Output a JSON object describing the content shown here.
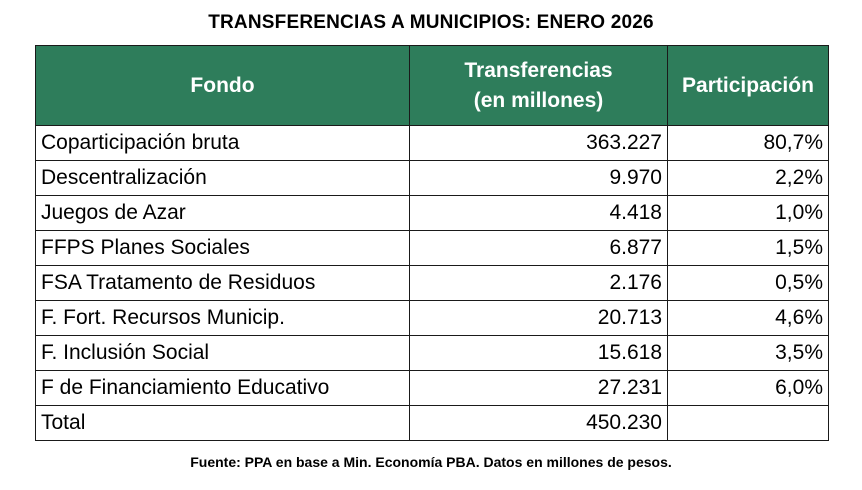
{
  "title": "TRANSFERENCIAS A MUNICIPIOS: ENERO 2026",
  "headers": {
    "fondo": "Fondo",
    "transferencias_line1": "Transferencias",
    "transferencias_line2": "(en millones)",
    "participacion": "Participación"
  },
  "rows": [
    {
      "fondo": "Coparticipación bruta",
      "transferencias": "363.227",
      "participacion": "80,7%"
    },
    {
      "fondo": "Descentralización",
      "transferencias": "9.970",
      "participacion": "2,2%"
    },
    {
      "fondo": "Juegos de Azar",
      "transferencias": "4.418",
      "participacion": "1,0%"
    },
    {
      "fondo": "FFPS Planes Sociales",
      "transferencias": "6.877",
      "participacion": "1,5%"
    },
    {
      "fondo": "FSA Tratamento de Residuos",
      "transferencias": "2.176",
      "participacion": "0,5%"
    },
    {
      "fondo": "F. Fort. Recursos Municip.",
      "transferencias": "20.713",
      "participacion": "4,6%"
    },
    {
      "fondo": "F. Inclusión Social",
      "transferencias": "15.618",
      "participacion": "3,5%"
    },
    {
      "fondo": "F de Financiamiento Educativo",
      "transferencias": "27.231",
      "participacion": "6,0%"
    }
  ],
  "total": {
    "label": "Total",
    "transferencias": "450.230",
    "participacion": ""
  },
  "source": "Fuente: PPA en base a Min. Economía PBA. Datos en millones de pesos.",
  "colors": {
    "header_bg": "#2e7d5b",
    "header_text": "#ffffff",
    "border": "#1a1a1a"
  }
}
